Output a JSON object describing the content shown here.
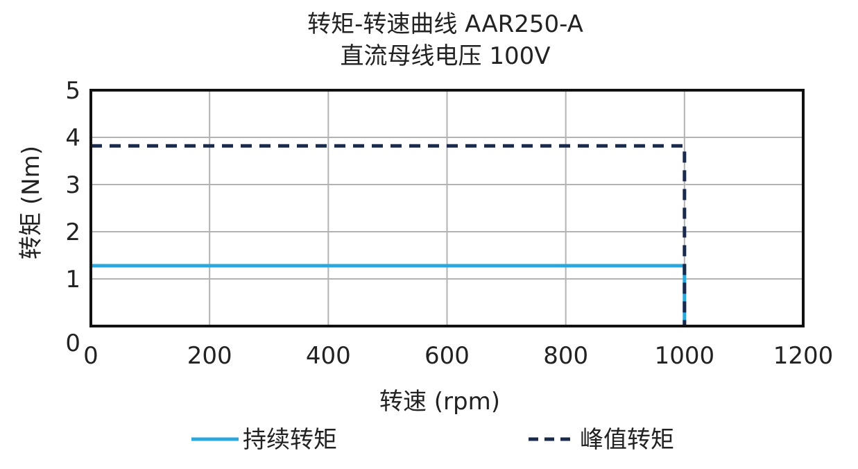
{
  "chart_data": {
    "type": "line",
    "title": "转矩-转速曲线 AAR250-A",
    "subtitle": "直流母线电压 100V",
    "xlabel": "转速 (rpm)",
    "ylabel": "转矩 (Nm)",
    "xlim": [
      0,
      1200
    ],
    "ylim": [
      0,
      5
    ],
    "x_ticks": [
      "0",
      "200",
      "400",
      "600",
      "800",
      "1000",
      "1200"
    ],
    "y_ticks": [
      "0",
      "1",
      "2",
      "3",
      "4",
      "5"
    ],
    "grid": true,
    "legend_position": "bottom",
    "series": [
      {
        "name": "持续转矩",
        "style": "solid",
        "color": "#2aa7dc",
        "x": [
          0,
          1000,
          1000
        ],
        "y": [
          1.28,
          1.28,
          0
        ]
      },
      {
        "name": "峰值转矩",
        "style": "dashed",
        "color": "#1a2a4a",
        "x": [
          0,
          1000,
          1000
        ],
        "y": [
          3.82,
          3.82,
          0
        ]
      }
    ]
  }
}
